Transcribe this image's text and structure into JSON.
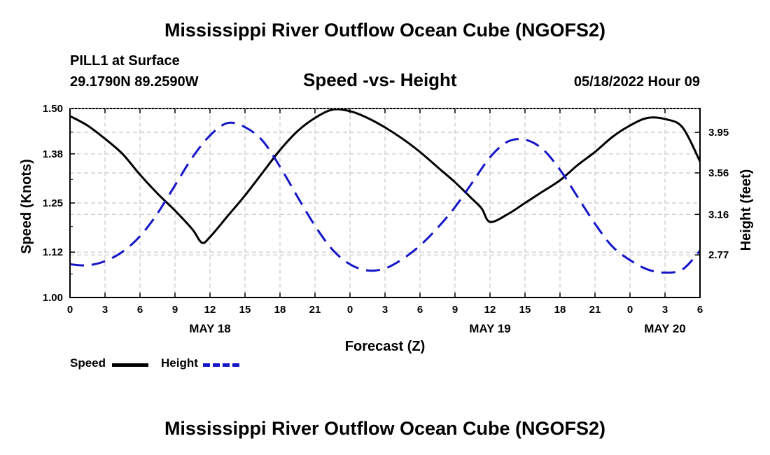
{
  "header": {
    "main_title": "Mississippi River Outflow Ocean Cube (NGOFS2)",
    "station": "PILL1 at Surface",
    "coords": "29.1790N  89.2590W",
    "subtitle": "Speed -vs- Height",
    "datetime": "05/18/2022 Hour 09"
  },
  "footer": {
    "title": "Mississippi River Outflow Ocean Cube (NGOFS2)"
  },
  "legend": {
    "speed_label": "Speed",
    "height_label": "Height"
  },
  "colors": {
    "speed": "#000000",
    "height": "#1515c8",
    "grid": "#c8c8c8"
  },
  "chart_data": {
    "type": "line",
    "title": "Speed -vs- Height",
    "xlabel": "Forecast (Z)",
    "ylabel": "Speed (Knots)",
    "y2label": "Height (feet)",
    "x_range": [
      0,
      54
    ],
    "ylim": [
      1.0,
      1.5
    ],
    "y2lim": [
      2.36,
      4.18
    ],
    "x_ticks": [
      0,
      3,
      6,
      9,
      12,
      15,
      18,
      21,
      24,
      27,
      30,
      33,
      36,
      39,
      42,
      45,
      48,
      51,
      54
    ],
    "x_tick_labels": [
      "0",
      "3",
      "6",
      "9",
      "12",
      "15",
      "18",
      "21",
      "0",
      "3",
      "6",
      "9",
      "12",
      "15",
      "18",
      "21",
      "0",
      "3",
      "6"
    ],
    "date_labels": [
      {
        "x": 12,
        "label": "MAY 18"
      },
      {
        "x": 36,
        "label": "MAY 19"
      },
      {
        "x": 51,
        "label": "MAY 20"
      }
    ],
    "y_ticks": [
      1.0,
      1.12,
      1.25,
      1.38,
      1.5
    ],
    "y_tick_labels": [
      "1.00",
      "1.12",
      "1.25",
      "1.38",
      "1.50"
    ],
    "y2_ticks": [
      2.77,
      3.16,
      3.56,
      3.95
    ],
    "y2_tick_labels": [
      "2.77",
      "3.16",
      "3.56",
      "3.95"
    ],
    "grid": true,
    "series": [
      {
        "name": "Speed",
        "axis": "left",
        "style": "solid",
        "x": [
          0,
          1.5,
          3,
          4.5,
          6,
          7.5,
          9,
          10.5,
          11.3,
          12,
          13.5,
          15,
          16.5,
          18,
          19.5,
          21,
          22.5,
          24,
          25.5,
          27,
          28.5,
          30,
          31.5,
          33,
          34.5,
          35.3,
          36,
          37.5,
          39,
          40.5,
          42,
          43.5,
          45,
          46.5,
          48,
          49.5,
          51,
          52.5,
          54
        ],
        "values": [
          1.48,
          1.455,
          1.42,
          1.38,
          1.325,
          1.275,
          1.23,
          1.18,
          1.145,
          1.16,
          1.215,
          1.27,
          1.33,
          1.39,
          1.44,
          1.475,
          1.497,
          1.493,
          1.475,
          1.45,
          1.42,
          1.385,
          1.345,
          1.305,
          1.26,
          1.235,
          1.2,
          1.22,
          1.25,
          1.28,
          1.31,
          1.35,
          1.385,
          1.425,
          1.455,
          1.475,
          1.472,
          1.45,
          1.36
        ]
      },
      {
        "name": "Height",
        "axis": "right",
        "style": "dashed",
        "x": [
          0,
          1.5,
          3,
          4.5,
          6,
          7.5,
          9,
          10.5,
          12,
          13.5,
          15,
          16.5,
          18,
          19.5,
          21,
          22.5,
          24,
          25.5,
          27,
          28.5,
          30,
          31.5,
          33,
          34.5,
          36,
          37.5,
          39,
          40.5,
          42,
          43.5,
          45,
          46.5,
          48,
          49.5,
          51,
          52.5,
          54
        ],
        "values": [
          2.68,
          2.67,
          2.71,
          2.8,
          2.95,
          3.17,
          3.44,
          3.71,
          3.92,
          4.04,
          4.0,
          3.87,
          3.62,
          3.33,
          3.05,
          2.82,
          2.68,
          2.62,
          2.64,
          2.73,
          2.86,
          3.03,
          3.23,
          3.47,
          3.71,
          3.86,
          3.88,
          3.79,
          3.59,
          3.33,
          3.07,
          2.85,
          2.72,
          2.63,
          2.6,
          2.63,
          2.81
        ]
      }
    ]
  }
}
